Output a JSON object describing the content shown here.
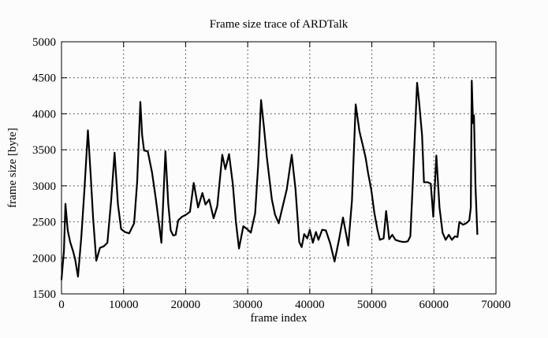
{
  "chart_data": {
    "type": "line",
    "title": "Frame size trace of ARDTalk",
    "xlabel": "frame index",
    "ylabel": "frame size [byte]",
    "xlim": [
      0,
      70000
    ],
    "ylim": [
      1500,
      5000
    ],
    "x_tick_labels": [
      "0",
      "10000",
      "20000",
      "30000",
      "40000",
      "50000",
      "60000",
      "70000"
    ],
    "y_tick_labels": [
      "1500",
      "2000",
      "2500",
      "3000",
      "3500",
      "4000",
      "4500",
      "5000"
    ],
    "grid": "dotted both axes at every tick",
    "legend_position": "none",
    "line_color": "#000000",
    "grid_color": "#333333",
    "border_color": "#000000",
    "background_color": "#fcfcfc",
    "series": [
      {
        "name": "frame size",
        "points": [
          [
            0,
            1700
          ],
          [
            400,
            2100
          ],
          [
            640,
            2750
          ],
          [
            1000,
            2380
          ],
          [
            1400,
            2220
          ],
          [
            1900,
            2080
          ],
          [
            2200,
            1980
          ],
          [
            2650,
            1740
          ],
          [
            3200,
            2300
          ],
          [
            3700,
            2950
          ],
          [
            4250,
            3770
          ],
          [
            4700,
            3150
          ],
          [
            5100,
            2550
          ],
          [
            5600,
            1960
          ],
          [
            6200,
            2140
          ],
          [
            6800,
            2160
          ],
          [
            7400,
            2210
          ],
          [
            8000,
            2800
          ],
          [
            8550,
            3460
          ],
          [
            9100,
            2740
          ],
          [
            9600,
            2400
          ],
          [
            10200,
            2360
          ],
          [
            10900,
            2340
          ],
          [
            11700,
            2480
          ],
          [
            12200,
            3060
          ],
          [
            12700,
            4165
          ],
          [
            13000,
            3700
          ],
          [
            13300,
            3490
          ],
          [
            13900,
            3480
          ],
          [
            14600,
            3180
          ],
          [
            15200,
            2820
          ],
          [
            15700,
            2480
          ],
          [
            16100,
            2210
          ],
          [
            16750,
            3480
          ],
          [
            17200,
            2750
          ],
          [
            17600,
            2380
          ],
          [
            18000,
            2310
          ],
          [
            18400,
            2320
          ],
          [
            18800,
            2520
          ],
          [
            19400,
            2570
          ],
          [
            20100,
            2600
          ],
          [
            20700,
            2640
          ],
          [
            21300,
            3040
          ],
          [
            22000,
            2700
          ],
          [
            22700,
            2900
          ],
          [
            23200,
            2740
          ],
          [
            23800,
            2810
          ],
          [
            24500,
            2550
          ],
          [
            25100,
            2720
          ],
          [
            25900,
            3430
          ],
          [
            26400,
            3230
          ],
          [
            27000,
            3440
          ],
          [
            27600,
            3020
          ],
          [
            28100,
            2500
          ],
          [
            28600,
            2130
          ],
          [
            29300,
            2440
          ],
          [
            29900,
            2400
          ],
          [
            30500,
            2350
          ],
          [
            31200,
            2620
          ],
          [
            31700,
            3300
          ],
          [
            32150,
            4190
          ],
          [
            32600,
            3830
          ],
          [
            33100,
            3390
          ],
          [
            33900,
            2810
          ],
          [
            34400,
            2600
          ],
          [
            35000,
            2480
          ],
          [
            35600,
            2700
          ],
          [
            36300,
            2950
          ],
          [
            37100,
            3430
          ],
          [
            37700,
            2950
          ],
          [
            38300,
            2220
          ],
          [
            38700,
            2150
          ],
          [
            39100,
            2330
          ],
          [
            39600,
            2270
          ],
          [
            40000,
            2390
          ],
          [
            40500,
            2210
          ],
          [
            41000,
            2360
          ],
          [
            41400,
            2250
          ],
          [
            42000,
            2390
          ],
          [
            42600,
            2380
          ],
          [
            43300,
            2200
          ],
          [
            44000,
            1950
          ],
          [
            44700,
            2250
          ],
          [
            45350,
            2560
          ],
          [
            46200,
            2170
          ],
          [
            46800,
            2800
          ],
          [
            47400,
            4130
          ],
          [
            48000,
            3760
          ],
          [
            48600,
            3540
          ],
          [
            49000,
            3390
          ],
          [
            49400,
            3180
          ],
          [
            49900,
            2950
          ],
          [
            50400,
            2630
          ],
          [
            50900,
            2390
          ],
          [
            51300,
            2250
          ],
          [
            51900,
            2270
          ],
          [
            52300,
            2650
          ],
          [
            52800,
            2260
          ],
          [
            53300,
            2320
          ],
          [
            53800,
            2250
          ],
          [
            54500,
            2230
          ],
          [
            55200,
            2220
          ],
          [
            55800,
            2230
          ],
          [
            56200,
            2300
          ],
          [
            56600,
            3030
          ],
          [
            57300,
            4430
          ],
          [
            57600,
            4180
          ],
          [
            58100,
            3700
          ],
          [
            58400,
            3050
          ],
          [
            59000,
            3050
          ],
          [
            59500,
            3030
          ],
          [
            59900,
            2570
          ],
          [
            60400,
            3420
          ],
          [
            60900,
            2700
          ],
          [
            61400,
            2350
          ],
          [
            61900,
            2250
          ],
          [
            62400,
            2320
          ],
          [
            62900,
            2250
          ],
          [
            63400,
            2300
          ],
          [
            63800,
            2290
          ],
          [
            64100,
            2500
          ],
          [
            64700,
            2460
          ],
          [
            65200,
            2480
          ],
          [
            65700,
            2520
          ],
          [
            65950,
            2700
          ],
          [
            66100,
            4460
          ],
          [
            66300,
            3870
          ],
          [
            66450,
            3980
          ],
          [
            66700,
            3000
          ],
          [
            67000,
            2330
          ]
        ]
      }
    ]
  }
}
